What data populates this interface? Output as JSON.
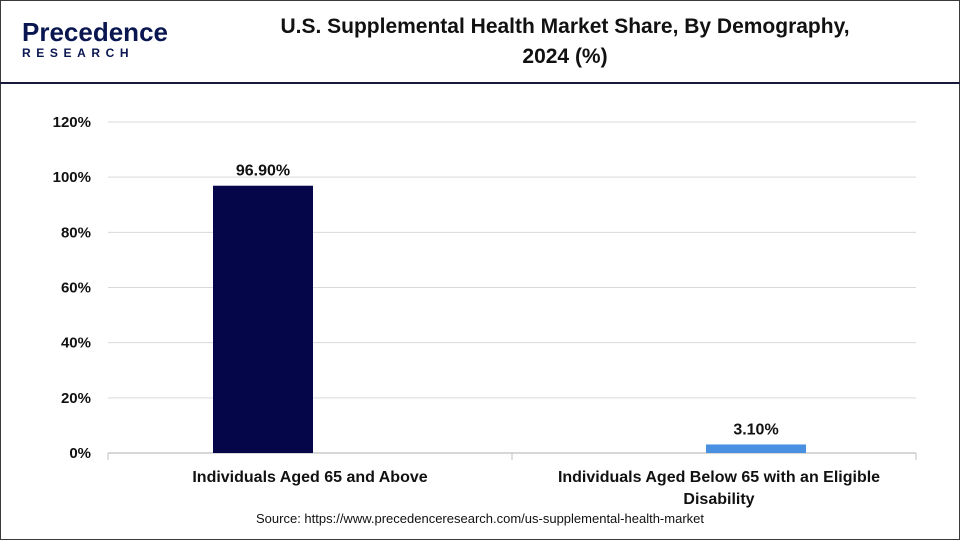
{
  "brand": {
    "name": "Precedence",
    "sub": "RESEARCH"
  },
  "title_line1": "U.S. Supplemental Health Market Share, By Demography,",
  "title_line2": "2024 (%)",
  "source": "Source: https://www.precedenceresearch.com/us-supplemental-health-market",
  "colors": {
    "series": [
      "#05054a",
      "#4a90e2"
    ],
    "grid": "#d9d9d9",
    "axis": "#bfbfbf"
  },
  "chart_data": {
    "type": "bar",
    "title": "U.S. Supplemental Health Market Share, By Demography, 2024 (%)",
    "categories": [
      [
        "Individuals Aged 65 and Above"
      ],
      [
        "Individuals Aged Below 65 with an Eligible",
        "Disability"
      ]
    ],
    "values": [
      96.9,
      3.1
    ],
    "data_labels": [
      "96.90%",
      "3.10%"
    ],
    "ylim": [
      0,
      120
    ],
    "yticks": [
      0,
      20,
      40,
      60,
      80,
      100,
      120
    ],
    "ytick_labels": [
      "0%",
      "20%",
      "40%",
      "60%",
      "80%",
      "100%",
      "120%"
    ],
    "xlabel": "",
    "ylabel": "",
    "grid": true,
    "legend": "none"
  }
}
